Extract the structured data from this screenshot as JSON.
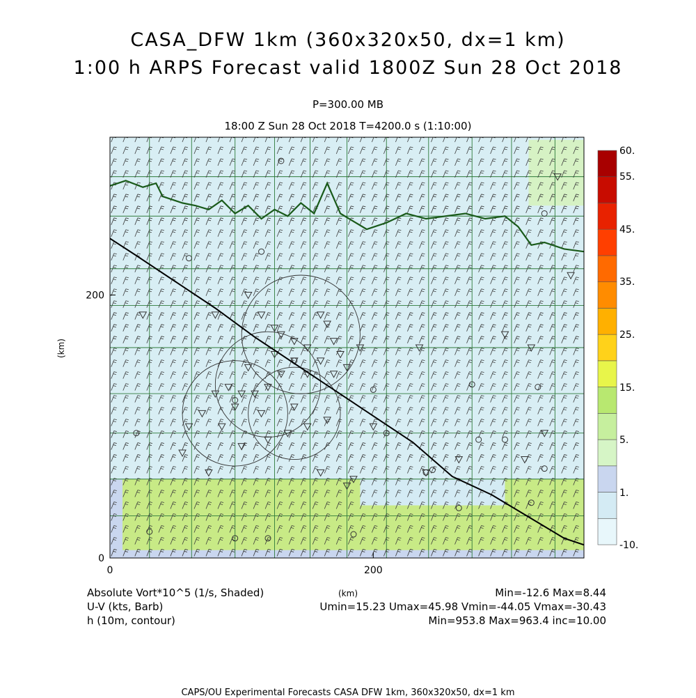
{
  "header": {
    "title_line1": "CASA_DFW 1km (360x320x50, dx=1 km)",
    "title_line2": "1:00 h ARPS Forecast valid 1800Z Sun 28 Oct 2018",
    "pressure_level": "P=300.00 MB",
    "valid_time": "18:00 Z Sun 28 Oct 2018   T=4200.0 s (1:10:00)"
  },
  "legend_block": {
    "field1": "Absolute Vort*10^5 (1/s, Shaded)",
    "field1_range": "Min=-12.6 Max=8.44",
    "field2": "U-V (kts, Barb)",
    "field2_range": "Umin=15.23 Umax=45.98 Vmin=-44.05 Vmax=-30.43",
    "field3": "h (10m, contour)",
    "field3_range": "Min=953.8 Max=963.4 inc=10.00",
    "x_unit": "(km)"
  },
  "footer": {
    "credit": "CAPS/OU Experimental Forecasts  CASA DFW 1km, 360x320x50, dx=1 km"
  },
  "colorbar": {
    "labels": [
      "60.",
      "55.",
      "45.",
      "35.",
      "25.",
      "15.",
      "5.",
      "1.",
      "-10."
    ],
    "colors": [
      "#e8f7fb",
      "#d4ebf4",
      "#c9d6ef",
      "#d6f5c6",
      "#c6ef9e",
      "#b8e870",
      "#e8f54a",
      "#ffd21a",
      "#ffb000",
      "#ff8c00",
      "#ff6a00",
      "#ff3f00",
      "#e82200",
      "#c80c00",
      "#a80000"
    ]
  },
  "chart_data": {
    "type": "map",
    "title": "CASA_DFW 1km (360x320x50, dx=1 km)",
    "xlabel": "(km)",
    "ylabel": "(km)",
    "xlim": [
      0,
      360
    ],
    "ylim": [
      0,
      320
    ],
    "x_ticks": [
      0,
      200
    ],
    "y_ticks": [
      0,
      200
    ],
    "shaded_field": "Absolute Vort*10^5 (1/s)",
    "shaded_min": -12.6,
    "shaded_max": 8.44,
    "barb_field": "U-V (kts)",
    "u_range": [
      15.23,
      45.98
    ],
    "v_range": [
      -44.05,
      -30.43
    ],
    "contour_field": "h (10m)",
    "contour_range": [
      953.8,
      963.4
    ],
    "contour_interval": 10.0
  }
}
